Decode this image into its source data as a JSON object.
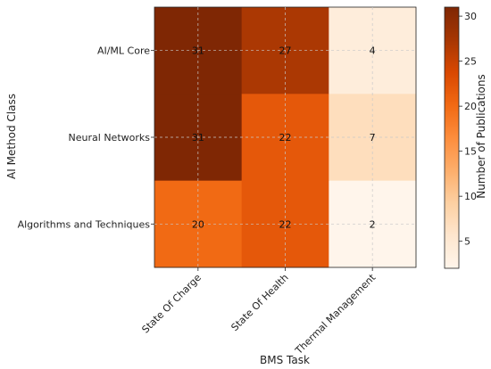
{
  "chart_data": {
    "type": "heatmap",
    "title": "",
    "xlabel": "BMS Task",
    "ylabel": "AI Method Class",
    "x_categories": [
      "State Of Charge",
      "State Of Health",
      "Thermal Management"
    ],
    "y_categories": [
      "AI/ML Core",
      "Neural Networks",
      "Algorithms and Techniques"
    ],
    "values": [
      [
        31,
        27,
        4
      ],
      [
        31,
        22,
        7
      ],
      [
        20,
        22,
        2
      ]
    ],
    "colorbar": {
      "label": "Number of Publications",
      "min": 2,
      "max": 31,
      "ticks": [
        5,
        10,
        15,
        20,
        25,
        30
      ]
    },
    "colormap": "Oranges",
    "grid": true,
    "colors": {
      "low": "#fff5eb",
      "mid": "#fd8d3c",
      "high": "#7f2704",
      "grid": "#c8c8c8"
    }
  }
}
